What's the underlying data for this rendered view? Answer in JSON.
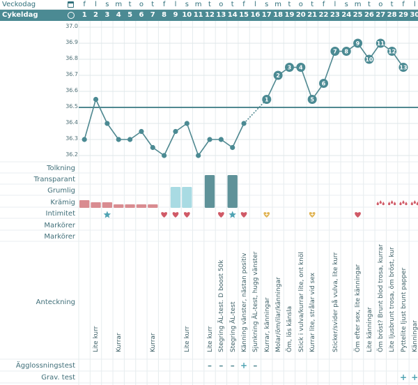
{
  "header": {
    "weekday_label": "Veckodag",
    "cycleday_label": "Cykeldag",
    "weekdays": [
      "f",
      "l",
      "s",
      "m",
      "t",
      "o",
      "t",
      "f",
      "l",
      "s",
      "m",
      "t",
      "o",
      "t",
      "f",
      "l",
      "s",
      "m",
      "t",
      "o",
      "t",
      "f",
      "l",
      "s",
      "m",
      "t",
      "o",
      "t",
      "f",
      "l"
    ],
    "cycledays": [
      "1",
      "2",
      "3",
      "4",
      "5",
      "6",
      "7",
      "8",
      "9",
      "10",
      "11",
      "12",
      "13",
      "14",
      "15",
      "16",
      "17",
      "18",
      "19",
      "20",
      "21",
      "22",
      "23",
      "24",
      "25",
      "26",
      "27",
      "28",
      "29",
      "30"
    ]
  },
  "colors": {
    "teal": "#4b8a93",
    "line": "#4f8890",
    "mucus_pink": "#d98c91",
    "mucus_light": "#a9dbe3",
    "mucus_dark": "#5f9299",
    "heart_red": "#d05a67",
    "heart_gold": "#e0b352",
    "star_blue": "#4fa3b3"
  },
  "rows": {
    "tolkning": "Tolkning",
    "transparant": "Transparant",
    "grumlig": "Grumlig",
    "kramig": "Krämig",
    "intimitet": "Intimitet",
    "markorer1": "Markörer",
    "markorer2": "Markörer",
    "anteckning": "Anteckning",
    "agglossningstest": "Ägglossningstest",
    "gravtest": "Grav. test"
  },
  "chart_data": {
    "type": "line",
    "ylim": [
      36.2,
      37.0
    ],
    "yticks": [
      "37.0",
      "36.9",
      "36.8",
      "36.7",
      "36.6",
      "36.5",
      "36.4",
      "36.3",
      "36.2"
    ],
    "coverline": 36.5,
    "temps": [
      36.3,
      36.55,
      36.4,
      36.3,
      36.3,
      36.35,
      36.25,
      36.2,
      36.35,
      36.4,
      36.2,
      36.3,
      36.3,
      36.25,
      36.4,
      null,
      36.55,
      36.7,
      36.75,
      36.75,
      36.55,
      36.65,
      36.85,
      36.85,
      36.9,
      36.8,
      36.9,
      36.85,
      36.75,
      null
    ],
    "high_labels": {
      "17": "1",
      "18": "2",
      "19": "3",
      "20": "4",
      "21": "5",
      "22": "6",
      "23": "7",
      "24": "8",
      "25": "9",
      "26": "10",
      "27": "11",
      "28": "12",
      "29": "13"
    }
  },
  "notes": {
    "2": "Lite kurr",
    "4": "Kurrar",
    "7": "Kurrar",
    "10": "Lite kurr",
    "12": "Lite kurr",
    "13": "Stegring ÄL-test. D boost 50k",
    "14": "Stegring ÄL-test",
    "15": "Känning vänster, nästan positiv",
    "16": "Sjunkning ÄL-test, hugg vänster",
    "17": "Kurrar, känningar",
    "18": "Molar/öm/ilar/känningar",
    "19": "Öm, lös känsla",
    "20": "Stick i vulva/kurrar lite, ont knöl",
    "21": "Kurrar lite, strålar vid sex",
    "23": "Sticker/svider på vulva, lite kurr",
    "25": "Öm efter sex, lite känningar",
    "26": "Lite känningar",
    "27": "Öm bröst? Brunt blod trosa, kurrar",
    "28": "Lite ljusbrunt trosa, öm bröst, kur",
    "29": "Pyttelite ljust brunt papper",
    "30": "Känningar"
  },
  "ovulation_tests": {
    "12": "–",
    "13": "–",
    "14": "–",
    "15": "+",
    "16": "–"
  },
  "pregnancy_tests": {
    "29": "+",
    "30": "+"
  }
}
